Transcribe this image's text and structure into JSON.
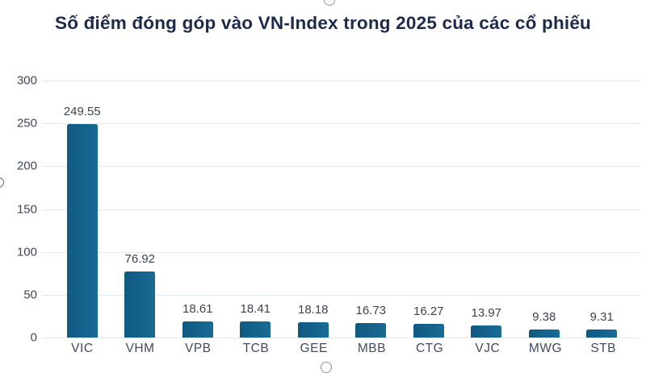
{
  "title": "Số điểm đóng góp vào VN-Index trong 2025 của các cổ phiếu",
  "chart_data": {
    "type": "bar",
    "title": "Số điểm đóng góp vào VN-Index trong 2025 của các cổ phiếu",
    "categories": [
      "VIC",
      "VHM",
      "VPB",
      "TCB",
      "GEE",
      "MBB",
      "CTG",
      "VJC",
      "MWG",
      "STB"
    ],
    "values": [
      249.55,
      76.92,
      18.61,
      18.41,
      18.18,
      16.73,
      16.27,
      13.97,
      9.38,
      9.31
    ],
    "data_labels": [
      "249.55",
      "76.92",
      "18.61",
      "18.41",
      "18.18",
      "16.73",
      "16.27",
      "13.97",
      "9.38",
      "9.31"
    ],
    "xlabel": "",
    "ylabel": "",
    "ylim": [
      0,
      300
    ],
    "yticks": [
      0,
      50,
      100,
      150,
      200,
      250,
      300
    ],
    "grid": true,
    "legend": false,
    "bar_color": "#15628c",
    "gridline_color": "#e2e9f1",
    "title_color": "#1e2a4c",
    "label_color": "#3c4352"
  }
}
